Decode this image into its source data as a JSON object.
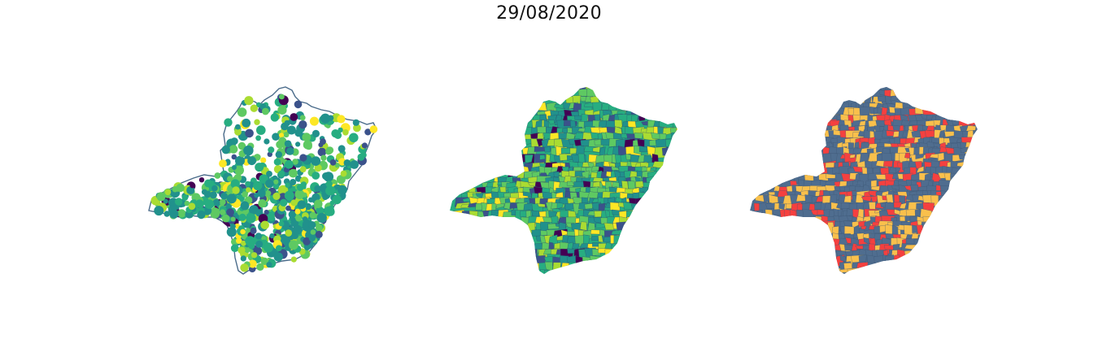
{
  "title": "29/08/2020",
  "colors": {
    "outline": "#4a6b8a",
    "viridis": [
      "#440154",
      "#3b528b",
      "#21918c",
      "#27ad81",
      "#5ec962",
      "#aadc32",
      "#fde725"
    ],
    "risk": {
      "low": "#4f6d8f",
      "medium": "#f9c04c",
      "high": "#f5403f"
    }
  },
  "panels": [
    {
      "name": "points-map",
      "style": "bubble-scatter"
    },
    {
      "name": "choropleth-viridis",
      "style": "choropleth"
    },
    {
      "name": "choropleth-risk",
      "style": "categorical"
    }
  ]
}
